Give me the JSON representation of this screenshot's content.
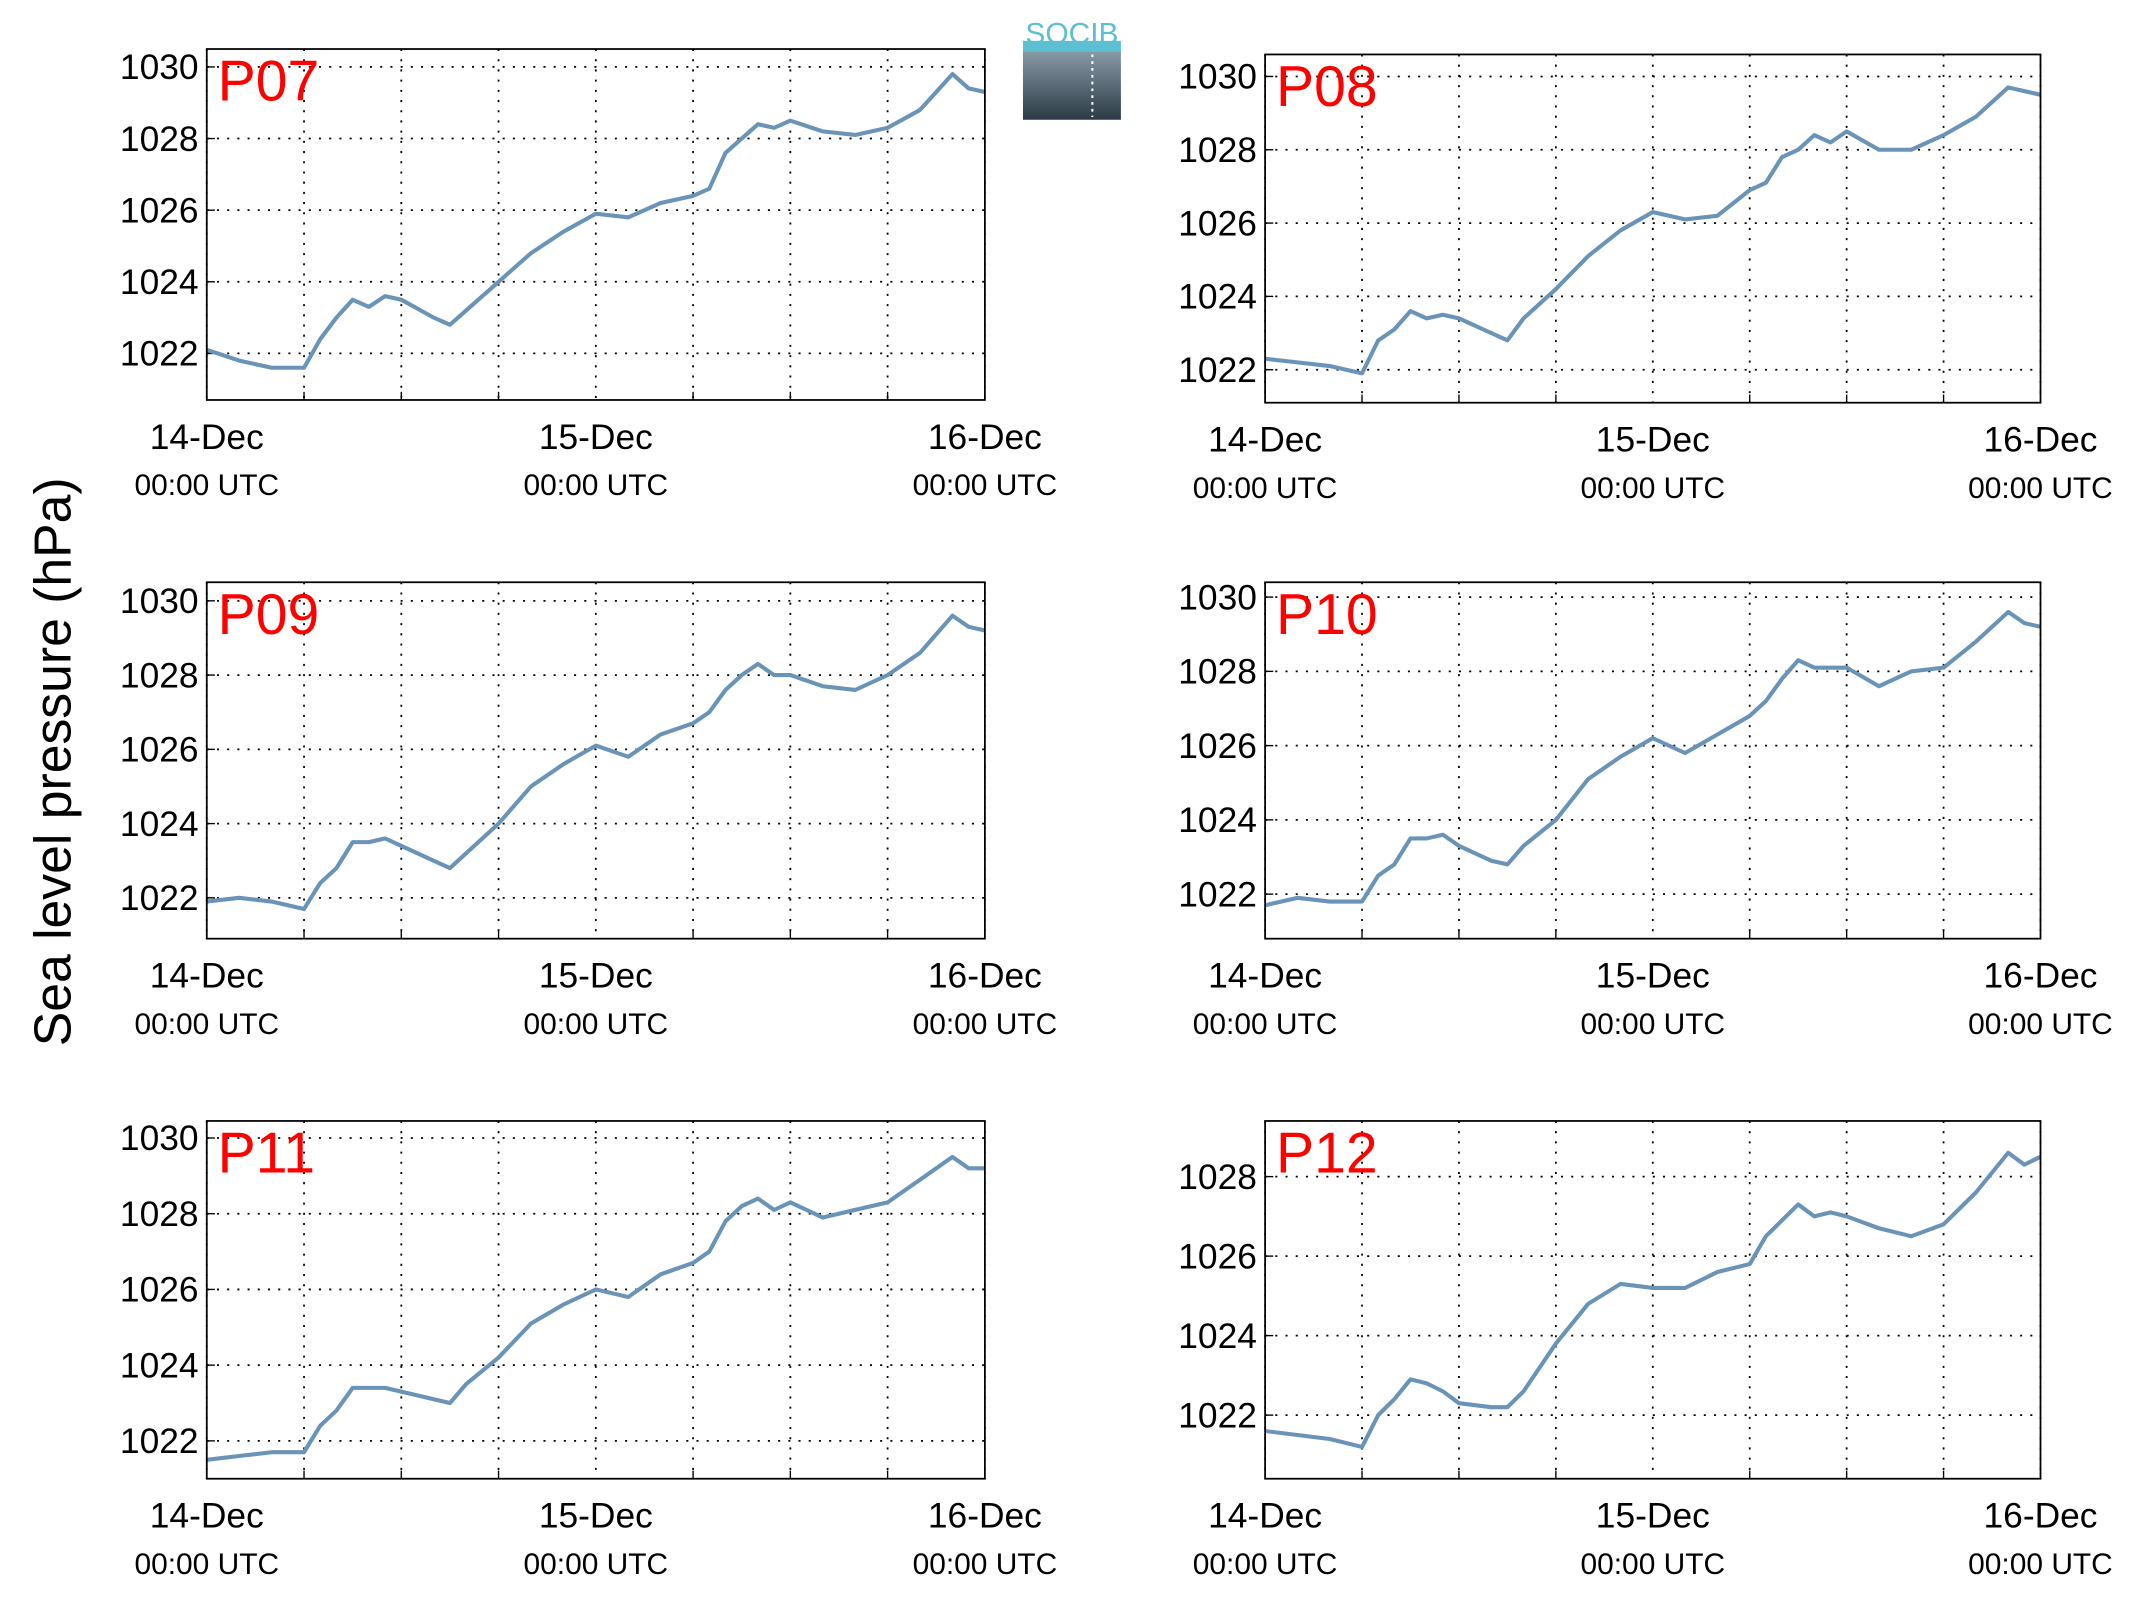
{
  "logo": "SOCIB",
  "ylabel": "Sea level pressure (hPa)",
  "chart_data": [
    {
      "type": "line",
      "title": "P07",
      "color": "#6a93b8",
      "x": [
        0,
        2,
        4,
        6,
        7,
        8,
        9,
        10,
        11,
        12,
        14,
        15,
        16,
        18,
        20,
        22,
        24,
        26,
        28,
        30,
        31,
        32,
        33,
        34,
        35,
        36,
        38,
        40,
        42,
        44,
        46,
        47,
        48
      ],
      "values": [
        1022.1,
        1021.8,
        1021.6,
        1021.6,
        1022.4,
        1023.0,
        1023.5,
        1023.3,
        1023.6,
        1023.5,
        1023.0,
        1022.8,
        1023.2,
        1024.0,
        1024.8,
        1025.4,
        1025.9,
        1025.8,
        1026.2,
        1026.4,
        1026.6,
        1027.6,
        1028.0,
        1028.4,
        1028.3,
        1028.5,
        1028.2,
        1028.1,
        1028.3,
        1028.8,
        1029.8,
        1029.4,
        1029.3
      ],
      "xlim": [
        0,
        48
      ],
      "xticks": [
        {
          "value": 0,
          "label": "14-Dec 00:00 UTC"
        },
        {
          "value": 24,
          "label": "15-Dec 00:00 UTC"
        },
        {
          "value": 48,
          "label": "16-Dec 00:00 UTC"
        }
      ],
      "xgrid": [
        6,
        12,
        18,
        30,
        36,
        42
      ],
      "ylim": [
        1020.7,
        1030.5
      ],
      "yticks": [
        1022,
        1024,
        1026,
        1028,
        1030
      ],
      "grid": true
    },
    {
      "type": "line",
      "title": "P08",
      "color": "#6a93b8",
      "x": [
        0,
        2,
        4,
        6,
        7,
        8,
        9,
        10,
        11,
        12,
        14,
        15,
        16,
        18,
        20,
        22,
        24,
        26,
        28,
        30,
        31,
        32,
        33,
        34,
        35,
        36,
        38,
        40,
        42,
        44,
        46,
        47,
        48
      ],
      "values": [
        1022.3,
        1022.2,
        1022.1,
        1021.9,
        1022.8,
        1023.1,
        1023.6,
        1023.4,
        1023.5,
        1023.4,
        1023.0,
        1022.8,
        1023.4,
        1024.2,
        1025.1,
        1025.8,
        1026.3,
        1026.1,
        1026.2,
        1026.9,
        1027.1,
        1027.8,
        1028.0,
        1028.4,
        1028.2,
        1028.5,
        1028.0,
        1028.0,
        1028.4,
        1028.9,
        1029.7,
        1029.6,
        1029.5
      ],
      "xlim": [
        0,
        48
      ],
      "xticks": [
        {
          "value": 0,
          "label": "14-Dec 00:00 UTC"
        },
        {
          "value": 24,
          "label": "15-Dec 00:00 UTC"
        },
        {
          "value": 48,
          "label": "16-Dec 00:00 UTC"
        }
      ],
      "xgrid": [
        6,
        12,
        18,
        30,
        36,
        42
      ],
      "ylim": [
        1021.1,
        1030.6
      ],
      "yticks": [
        1022,
        1024,
        1026,
        1028,
        1030
      ],
      "grid": true
    },
    {
      "type": "line",
      "title": "P09",
      "color": "#6a93b8",
      "x": [
        0,
        2,
        4,
        6,
        7,
        8,
        9,
        10,
        11,
        12,
        14,
        15,
        16,
        18,
        20,
        22,
        24,
        26,
        28,
        30,
        31,
        32,
        33,
        34,
        35,
        36,
        38,
        40,
        42,
        44,
        46,
        47,
        48
      ],
      "values": [
        1021.9,
        1022.0,
        1021.9,
        1021.7,
        1022.4,
        1022.8,
        1023.5,
        1023.5,
        1023.6,
        1023.4,
        1023.0,
        1022.8,
        1023.2,
        1024.0,
        1025.0,
        1025.6,
        1026.1,
        1025.8,
        1026.4,
        1026.7,
        1027.0,
        1027.6,
        1028.0,
        1028.3,
        1028.0,
        1028.0,
        1027.7,
        1027.6,
        1028.0,
        1028.6,
        1029.6,
        1029.3,
        1029.2
      ],
      "xlim": [
        0,
        48
      ],
      "xticks": [
        {
          "value": 0,
          "label": "14-Dec 00:00 UTC"
        },
        {
          "value": 24,
          "label": "15-Dec 00:00 UTC"
        },
        {
          "value": 48,
          "label": "16-Dec 00:00 UTC"
        }
      ],
      "xgrid": [
        6,
        12,
        18,
        30,
        36,
        42
      ],
      "ylim": [
        1020.9,
        1030.5
      ],
      "yticks": [
        1022,
        1024,
        1026,
        1028,
        1030
      ],
      "grid": true
    },
    {
      "type": "line",
      "title": "P10",
      "color": "#6a93b8",
      "x": [
        0,
        2,
        4,
        6,
        7,
        8,
        9,
        10,
        11,
        12,
        14,
        15,
        16,
        18,
        20,
        22,
        24,
        26,
        28,
        30,
        31,
        32,
        33,
        34,
        35,
        36,
        38,
        40,
        42,
        44,
        46,
        47,
        48
      ],
      "values": [
        1021.7,
        1021.9,
        1021.8,
        1021.8,
        1022.5,
        1022.8,
        1023.5,
        1023.5,
        1023.6,
        1023.3,
        1022.9,
        1022.8,
        1023.3,
        1024.0,
        1025.1,
        1025.7,
        1026.2,
        1025.8,
        1026.3,
        1026.8,
        1027.2,
        1027.8,
        1028.3,
        1028.1,
        1028.1,
        1028.1,
        1027.6,
        1028.0,
        1028.1,
        1028.8,
        1029.6,
        1029.3,
        1029.2
      ],
      "xlim": [
        0,
        48
      ],
      "xticks": [
        {
          "value": 0,
          "label": "14-Dec 00:00 UTC"
        },
        {
          "value": 24,
          "label": "15-Dec 00:00 UTC"
        },
        {
          "value": 48,
          "label": "16-Dec 00:00 UTC"
        }
      ],
      "xgrid": [
        6,
        12,
        18,
        30,
        36,
        42
      ],
      "ylim": [
        1020.8,
        1030.4
      ],
      "yticks": [
        1022,
        1024,
        1026,
        1028,
        1030
      ],
      "grid": true
    },
    {
      "type": "line",
      "title": "P11",
      "color": "#6a93b8",
      "x": [
        0,
        2,
        4,
        6,
        7,
        8,
        9,
        10,
        11,
        12,
        14,
        15,
        16,
        18,
        20,
        22,
        24,
        26,
        28,
        30,
        31,
        32,
        33,
        34,
        35,
        36,
        38,
        40,
        42,
        44,
        46,
        47,
        48
      ],
      "values": [
        1021.5,
        1021.6,
        1021.7,
        1021.7,
        1022.4,
        1022.8,
        1023.4,
        1023.4,
        1023.4,
        1023.3,
        1023.1,
        1023.0,
        1023.5,
        1024.2,
        1025.1,
        1025.6,
        1026.0,
        1025.8,
        1026.4,
        1026.7,
        1027.0,
        1027.8,
        1028.2,
        1028.4,
        1028.1,
        1028.3,
        1027.9,
        1028.1,
        1028.3,
        1028.9,
        1029.5,
        1029.2,
        1029.2
      ],
      "xlim": [
        0,
        48
      ],
      "xticks": [
        {
          "value": 0,
          "label": "14-Dec 00:00 UTC"
        },
        {
          "value": 24,
          "label": "15-Dec 00:00 UTC"
        },
        {
          "value": 48,
          "label": "16-Dec 00:00 UTC"
        }
      ],
      "xgrid": [
        6,
        12,
        18,
        30,
        36,
        42
      ],
      "ylim": [
        1021.0,
        1030.45
      ],
      "yticks": [
        1022,
        1024,
        1026,
        1028,
        1030
      ],
      "grid": true
    },
    {
      "type": "line",
      "title": "P12",
      "color": "#6a93b8",
      "x": [
        0,
        2,
        4,
        6,
        7,
        8,
        9,
        10,
        11,
        12,
        14,
        15,
        16,
        18,
        20,
        22,
        24,
        26,
        28,
        30,
        31,
        32,
        33,
        34,
        35,
        36,
        38,
        40,
        42,
        44,
        46,
        47,
        48
      ],
      "values": [
        1021.6,
        1021.5,
        1021.4,
        1021.2,
        1022.0,
        1022.4,
        1022.9,
        1022.8,
        1022.6,
        1022.3,
        1022.2,
        1022.2,
        1022.6,
        1023.8,
        1024.8,
        1025.3,
        1025.2,
        1025.2,
        1025.6,
        1025.8,
        1026.5,
        1026.9,
        1027.3,
        1027.0,
        1027.1,
        1027.0,
        1026.7,
        1026.5,
        1026.8,
        1027.6,
        1028.6,
        1028.3,
        1028.5
      ],
      "xlim": [
        0,
        48
      ],
      "xticks": [
        {
          "value": 0,
          "label": "14-Dec 00:00 UTC"
        },
        {
          "value": 24,
          "label": "15-Dec 00:00 UTC"
        },
        {
          "value": 48,
          "label": "16-Dec 00:00 UTC"
        }
      ],
      "xgrid": [
        6,
        12,
        18,
        30,
        36,
        42
      ],
      "ylim": [
        1020.4,
        1029.4
      ],
      "yticks": [
        1022,
        1024,
        1026,
        1028
      ],
      "grid": true
    }
  ]
}
